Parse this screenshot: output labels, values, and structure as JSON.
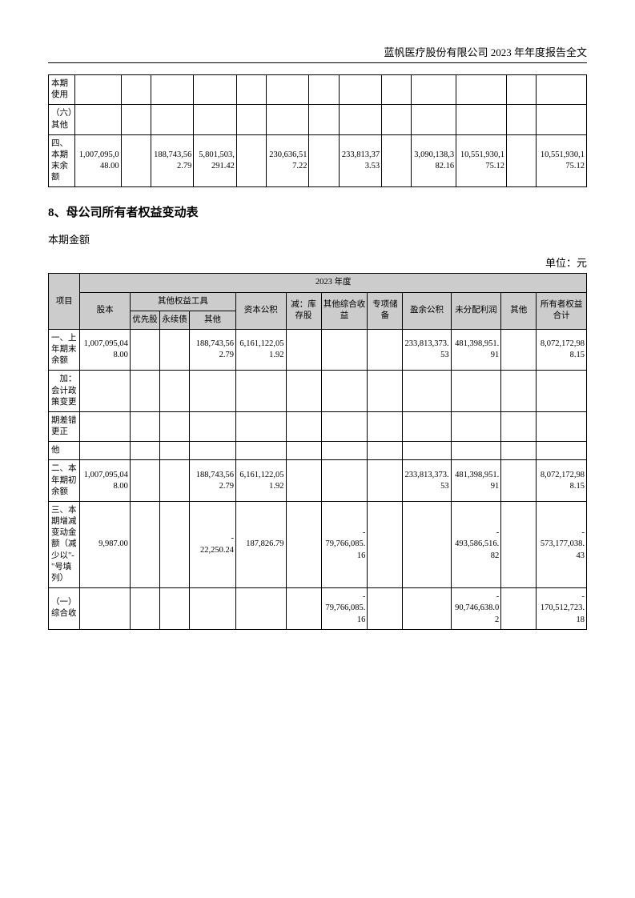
{
  "header": "蓝帆医疗股份有限公司 2023 年年度报告全文",
  "table1": {
    "rows": [
      {
        "label": "本期使用",
        "c1": "",
        "c2": "",
        "c3": "",
        "c4": "",
        "c5": "",
        "c6": "",
        "c7": "",
        "c8": "",
        "c9": "",
        "c10": "",
        "c11": "",
        "c12": "",
        "c13": ""
      },
      {
        "label": "（六）其他",
        "c1": "",
        "c2": "",
        "c3": "",
        "c4": "",
        "c5": "",
        "c6": "",
        "c7": "",
        "c8": "",
        "c9": "",
        "c10": "",
        "c11": "",
        "c12": "",
        "c13": ""
      },
      {
        "label": "四、本期末余额",
        "c1": "1,007,095,048.00",
        "c2": "",
        "c3": "188,743,562.79",
        "c4": "5,801,503,291.42",
        "c5": "",
        "c6": "230,636,517.22",
        "c7": "",
        "c8": "233,813,373.53",
        "c9": "",
        "c10": "3,090,138,382.16",
        "c11": "10,551,930,175.12",
        "c12": "",
        "c13": "10,551,930,175.12"
      }
    ]
  },
  "section_title": "8、母公司所有者权益变动表",
  "subtitle": "本期金额",
  "unit": "单位：元",
  "table2": {
    "year_header": "2023 年度",
    "header_row1": {
      "c0": "项目",
      "c1": "股本",
      "equity_tools": "其他权益工具",
      "c5": "资本公积",
      "c6": "减：库存股",
      "c7": "其他综合收益",
      "c8": "专项储备",
      "c9": "盈余公积",
      "c10": "未分配利润",
      "c11": "其他",
      "c12": "所有者权益合计"
    },
    "header_row2": {
      "c2": "优先股",
      "c3": "永续债",
      "c4": "其他"
    },
    "rows": [
      {
        "label": "一、上年期末余额",
        "c1": "1,007,095,048.00",
        "c2": "",
        "c3": "",
        "c4": "188,743,562.79",
        "c5": "6,161,122,051.92",
        "c6": "",
        "c7": "",
        "c8": "",
        "c9": "233,813,373.53",
        "c10": "481,398,951.91",
        "c11": "",
        "c12": "8,072,172,988.15"
      },
      {
        "label": "　加：会计政策变更",
        "c1": "",
        "c2": "",
        "c3": "",
        "c4": "",
        "c5": "",
        "c6": "",
        "c7": "",
        "c8": "",
        "c9": "",
        "c10": "",
        "c11": "",
        "c12": ""
      },
      {
        "label": "期差错更正",
        "c1": "",
        "c2": "",
        "c3": "",
        "c4": "",
        "c5": "",
        "c6": "",
        "c7": "",
        "c8": "",
        "c9": "",
        "c10": "",
        "c11": "",
        "c12": ""
      },
      {
        "label": "他",
        "c1": "",
        "c2": "",
        "c3": "",
        "c4": "",
        "c5": "",
        "c6": "",
        "c7": "",
        "c8": "",
        "c9": "",
        "c10": "",
        "c11": "",
        "c12": ""
      },
      {
        "label": "二、本年期初余额",
        "c1": "1,007,095,048.00",
        "c2": "",
        "c3": "",
        "c4": "188,743,562.79",
        "c5": "6,161,122,051.92",
        "c6": "",
        "c7": "",
        "c8": "",
        "c9": "233,813,373.53",
        "c10": "481,398,951.91",
        "c11": "",
        "c12": "8,072,172,988.15"
      },
      {
        "label": "三、本期增减变动金额（减少以\"-\"号填列）",
        "c1": "9,987.00",
        "c2": "",
        "c3": "",
        "c4": "-22,250.24",
        "c5": "187,826.79",
        "c6": "",
        "c7": "-79,766,085.16",
        "c8": "",
        "c9": "",
        "c10": "-493,586,516.82",
        "c11": "",
        "c12": "-573,177,038.43"
      },
      {
        "label": "（一）综合收",
        "c1": "",
        "c2": "",
        "c3": "",
        "c4": "",
        "c5": "",
        "c6": "",
        "c7": "-79,766,085.16",
        "c8": "",
        "c9": "",
        "c10": "-90,746,638.02",
        "c11": "",
        "c12": "-170,512,723.18"
      }
    ]
  },
  "colors": {
    "header_bg": "#cccccc",
    "border": "#000000",
    "text": "#000000"
  }
}
